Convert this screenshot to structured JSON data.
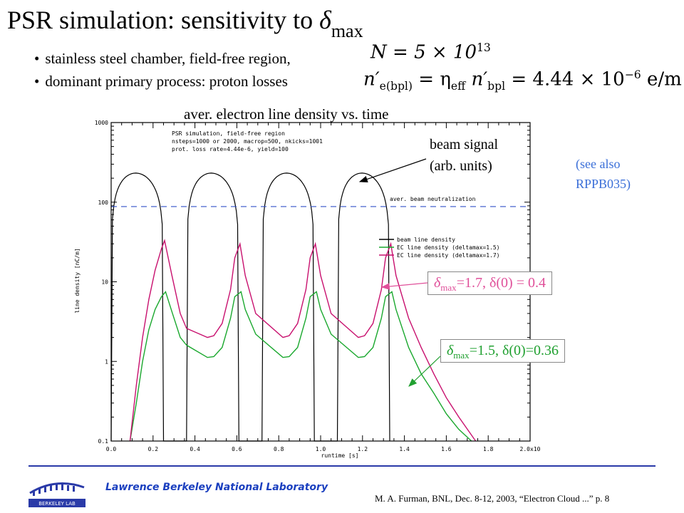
{
  "slide": {
    "title_main": "PSR simulation: sensitivity to ",
    "title_symbol": "δ",
    "title_sub": "max",
    "bullets": [
      "stainless steel chamber, field-free region,",
      "dominant primary process: proton losses"
    ],
    "eq1": "N = 5 × 10",
    "eq1_exp": "13",
    "eq2_lhs": "n′",
    "eq2_lhs_sub": "e(bpl)",
    "eq2_mid": " = η",
    "eq2_mid_sub": "eff",
    "eq2_rhs": " n′",
    "eq2_rhs_sub": "bpl",
    "eq2_val": " = 4.44 × 10",
    "eq2_val_exp": "−6",
    "eq2_unit": " e/m",
    "plot_heading": "aver. electron line density vs. time",
    "beam_signal_label_1": "beam signal",
    "beam_signal_label_2": "(arb. units)",
    "see_also_1": "(see also",
    "see_also_2": "RPPB035)",
    "label_17_delta": "δ",
    "label_17_sub": "max",
    "label_17_rest": "=1.7, δ(0) = 0.4",
    "label_15_delta": "δ",
    "label_15_sub": "max",
    "label_15_rest": "=1.5, δ(0)=0.36",
    "footer_org": "Lawrence Berkeley National Laboratory",
    "footer_ref": "M. A. Furman, BNL, Dec. 8-12, 2003, “Electron Cloud ...”  p. 8",
    "logo_text": "BERKELEY LAB"
  },
  "colors": {
    "beam": "#000000",
    "ec_15": "#1aa82e",
    "ec_17": "#c8106e",
    "neutralization": "#3050c8",
    "label_17": "#e0509a",
    "label_15": "#20a030",
    "see_also": "#3a6fd8",
    "footer_blue": "#1a3fbf"
  },
  "chart_data": {
    "type": "line",
    "title": "",
    "info_lines": [
      "PSR simulation, field-free region",
      "nsteps=1000 or 2000, macrop=500, nkicks=1001",
      "prot. loss rate=4.44e-6, yield=100"
    ],
    "xlabel": "runtime [s]",
    "ylabel": "line density [nC/m]",
    "xlim": [
      0.0,
      2.0
    ],
    "x_ticks": [
      "0.0",
      "0.2",
      "0.4",
      "0.6",
      "0.8",
      "1.0",
      "1.2",
      "1.4",
      "1.6",
      "1.8",
      "2.0x10"
    ],
    "x_tick_values": [
      0.0,
      0.2,
      0.4,
      0.6,
      0.8,
      1.0,
      1.2,
      1.4,
      1.6,
      1.8,
      2.0
    ],
    "yscale": "log",
    "ylim": [
      0.1,
      1000
    ],
    "y_ticks": [
      "1000",
      "100",
      "10",
      "1",
      "0.1"
    ],
    "y_tick_values": [
      1000,
      100,
      10,
      1,
      0.1
    ],
    "legend_position": "right",
    "reference_line": {
      "label": "aver. beam neutralization",
      "y": 88
    },
    "beam_pulses": {
      "starts": [
        0.0,
        0.36,
        0.72,
        1.08
      ],
      "width": 0.25,
      "peak": 250,
      "period": 0.36
    },
    "series": [
      {
        "name": "beam line density",
        "x": [
          0.0,
          0.02,
          0.05,
          0.08,
          0.12,
          0.15,
          0.18,
          0.21,
          0.23,
          0.25,
          0.36,
          0.38,
          0.41,
          0.44,
          0.48,
          0.51,
          0.54,
          0.57,
          0.59,
          0.61,
          0.72,
          0.74,
          0.77,
          0.8,
          0.84,
          0.87,
          0.9,
          0.93,
          0.95,
          0.97,
          1.08,
          1.1,
          1.13,
          1.16,
          1.2,
          1.23,
          1.26,
          1.29,
          1.31,
          1.33
        ],
        "y": [
          0.1,
          30,
          120,
          200,
          250,
          235,
          175,
          90,
          25,
          0.1,
          0.1,
          30,
          120,
          200,
          250,
          235,
          175,
          90,
          25,
          0.1,
          0.1,
          30,
          120,
          200,
          250,
          235,
          175,
          90,
          25,
          0.1,
          0.1,
          30,
          120,
          200,
          250,
          235,
          175,
          90,
          25,
          0.1
        ]
      },
      {
        "name": "EC line density (deltamax=1.5)",
        "x": [
          0.09,
          0.12,
          0.15,
          0.18,
          0.21,
          0.24,
          0.26,
          0.29,
          0.33,
          0.36,
          0.46,
          0.49,
          0.53,
          0.57,
          0.59,
          0.62,
          0.64,
          0.69,
          0.82,
          0.85,
          0.89,
          0.93,
          0.95,
          0.98,
          1.0,
          1.05,
          1.18,
          1.21,
          1.25,
          1.29,
          1.31,
          1.34,
          1.36,
          1.42,
          1.48,
          1.54,
          1.6,
          1.66,
          1.72
        ],
        "y": [
          0.1,
          0.3,
          1.0,
          2.5,
          4.5,
          6.5,
          7.5,
          4.2,
          2.0,
          1.6,
          1.12,
          1.15,
          1.5,
          3.5,
          6.5,
          7.5,
          4.5,
          2.2,
          1.12,
          1.15,
          1.5,
          3.5,
          6.5,
          7.5,
          4.5,
          2.2,
          1.12,
          1.15,
          1.5,
          3.5,
          6.5,
          7.5,
          4.5,
          1.5,
          0.7,
          0.4,
          0.22,
          0.14,
          0.1
        ]
      },
      {
        "name": "EC line density (deltamax=1.7)",
        "x": [
          0.09,
          0.12,
          0.15,
          0.18,
          0.21,
          0.24,
          0.255,
          0.29,
          0.33,
          0.36,
          0.46,
          0.49,
          0.53,
          0.57,
          0.59,
          0.615,
          0.64,
          0.69,
          0.82,
          0.85,
          0.89,
          0.93,
          0.95,
          0.975,
          1.0,
          1.05,
          1.18,
          1.21,
          1.25,
          1.29,
          1.31,
          1.335,
          1.36,
          1.42,
          1.48,
          1.54,
          1.6,
          1.66,
          1.74
        ],
        "y": [
          0.1,
          0.5,
          2.0,
          6.0,
          14,
          26,
          33,
          12,
          4.0,
          2.6,
          2.0,
          2.1,
          3.0,
          8.0,
          20,
          30,
          12,
          4.0,
          2.0,
          2.1,
          3.0,
          8.0,
          20,
          30,
          12,
          4.0,
          2.0,
          2.1,
          3.0,
          8.0,
          20,
          30,
          12,
          3.5,
          1.5,
          0.7,
          0.35,
          0.2,
          0.1
        ]
      }
    ]
  }
}
